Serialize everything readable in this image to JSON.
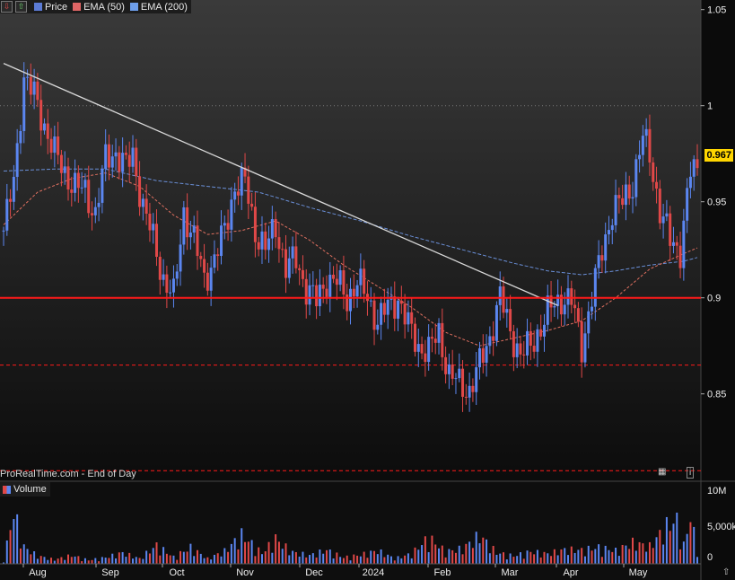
{
  "legend": {
    "items": [
      {
        "label": "Price",
        "color": "#5b7bd5"
      },
      {
        "label": "EMA (50)",
        "color": "#e06666"
      },
      {
        "label": "EMA (200)",
        "color": "#6d9eeb"
      }
    ]
  },
  "footer": "ProRealTime.com - End of Day",
  "volume_label": "Volume",
  "last_price_tag": "0.967",
  "colors": {
    "up": "#5b86f0",
    "down": "#e04848",
    "ema50": "#e07060",
    "ema200": "#6a8fd8",
    "support": "#ff1a1a"
  },
  "chart_data": [
    {
      "type": "candlestick",
      "ylim": [
        0.805,
        1.055
      ],
      "yticks": [
        0.85,
        0.9,
        0.95,
        1,
        1.05
      ],
      "ytick_labels": [
        "0.85",
        "0.9",
        "0.95",
        "1",
        "1.05"
      ],
      "xtick_labels": [
        "Aug",
        "Sep",
        "Oct",
        "Nov",
        "Dec",
        "2024",
        "Feb",
        "Mar",
        "Apr",
        "May"
      ],
      "close_path": [
        [
          0,
          0.935
        ],
        [
          3,
          0.96
        ],
        [
          6,
          1.015
        ],
        [
          9,
          1.005
        ],
        [
          12,
          0.99
        ],
        [
          15,
          0.975
        ],
        [
          18,
          0.965
        ],
        [
          21,
          0.958
        ],
        [
          24,
          0.955
        ],
        [
          27,
          0.944
        ],
        [
          30,
          0.972
        ],
        [
          33,
          0.976
        ],
        [
          36,
          0.968
        ],
        [
          38,
          0.974
        ],
        [
          41,
          0.948
        ],
        [
          44,
          0.93
        ],
        [
          47,
          0.91
        ],
        [
          50,
          0.9
        ],
        [
          53,
          0.945
        ],
        [
          56,
          0.93
        ],
        [
          59,
          0.91
        ],
        [
          62,
          0.92
        ],
        [
          65,
          0.935
        ],
        [
          68,
          0.958
        ],
        [
          71,
          0.96
        ],
        [
          74,
          0.935
        ],
        [
          77,
          0.925
        ],
        [
          80,
          0.938
        ],
        [
          83,
          0.915
        ],
        [
          86,
          0.92
        ],
        [
          89,
          0.905
        ],
        [
          92,
          0.898
        ],
        [
          95,
          0.91
        ],
        [
          98,
          0.908
        ],
        [
          101,
          0.9
        ],
        [
          104,
          0.908
        ],
        [
          107,
          0.9
        ],
        [
          110,
          0.888
        ],
        [
          113,
          0.895
        ],
        [
          116,
          0.9
        ],
        [
          119,
          0.885
        ],
        [
          122,
          0.875
        ],
        [
          125,
          0.872
        ],
        [
          128,
          0.882
        ],
        [
          131,
          0.86
        ],
        [
          134,
          0.855
        ],
        [
          137,
          0.852
        ],
        [
          140,
          0.865
        ],
        [
          143,
          0.88
        ],
        [
          146,
          0.9
        ],
        [
          149,
          0.883
        ],
        [
          152,
          0.87
        ],
        [
          155,
          0.875
        ],
        [
          158,
          0.885
        ],
        [
          161,
          0.895
        ],
        [
          164,
          0.9
        ],
        [
          167,
          0.898
        ],
        [
          170,
          0.875
        ],
        [
          173,
          0.9
        ],
        [
          176,
          0.925
        ],
        [
          179,
          0.945
        ],
        [
          182,
          0.95
        ],
        [
          185,
          0.96
        ],
        [
          188,
          0.983
        ],
        [
          190,
          0.975
        ],
        [
          193,
          0.945
        ],
        [
          196,
          0.93
        ],
        [
          199,
          0.925
        ],
        [
          202,
          0.965
        ],
        [
          204,
          0.967
        ]
      ],
      "n_candles": 205,
      "ema50": [
        [
          0,
          0.938
        ],
        [
          10,
          0.955
        ],
        [
          20,
          0.962
        ],
        [
          30,
          0.965
        ],
        [
          40,
          0.958
        ],
        [
          50,
          0.943
        ],
        [
          60,
          0.933
        ],
        [
          70,
          0.935
        ],
        [
          80,
          0.94
        ],
        [
          90,
          0.93
        ],
        [
          100,
          0.917
        ],
        [
          110,
          0.906
        ],
        [
          120,
          0.895
        ],
        [
          130,
          0.882
        ],
        [
          140,
          0.875
        ],
        [
          150,
          0.879
        ],
        [
          160,
          0.883
        ],
        [
          170,
          0.888
        ],
        [
          180,
          0.9
        ],
        [
          190,
          0.915
        ],
        [
          200,
          0.923
        ],
        [
          204,
          0.926
        ]
      ],
      "ema200": [
        [
          0,
          0.966
        ],
        [
          15,
          0.967
        ],
        [
          30,
          0.967
        ],
        [
          45,
          0.961
        ],
        [
          60,
          0.958
        ],
        [
          75,
          0.955
        ],
        [
          90,
          0.947
        ],
        [
          105,
          0.94
        ],
        [
          120,
          0.932
        ],
        [
          135,
          0.925
        ],
        [
          150,
          0.918
        ],
        [
          160,
          0.914
        ],
        [
          170,
          0.912
        ],
        [
          180,
          0.914
        ],
        [
          190,
          0.917
        ],
        [
          200,
          0.919
        ],
        [
          204,
          0.921
        ]
      ],
      "support_line": 0.9,
      "dashed_levels": [
        0.865,
        0.81
      ],
      "grid_levels": [
        1
      ],
      "trendline": [
        [
          0,
          1.022
        ],
        [
          163,
          0.896
        ]
      ]
    },
    {
      "type": "bar",
      "ylim": [
        0,
        10000000
      ],
      "ytick_labels": [
        "10M",
        "5,000k",
        "0"
      ],
      "volume": [
        [
          0,
          600000.0
        ],
        [
          3,
          9900000.0
        ],
        [
          6,
          3200000.0
        ],
        [
          10,
          1500000.0
        ],
        [
          15,
          800000.0
        ],
        [
          20,
          1600000.0
        ],
        [
          25,
          700000.0
        ],
        [
          30,
          1200000.0
        ],
        [
          35,
          2100000.0
        ],
        [
          40,
          1000000.0
        ],
        [
          45,
          3500000.0
        ],
        [
          50,
          1300000.0
        ],
        [
          55,
          3100000.0
        ],
        [
          60,
          1000000.0
        ],
        [
          65,
          2400000.0
        ],
        [
          70,
          5500000.0
        ],
        [
          73,
          3800000.0
        ],
        [
          76,
          2000000.0
        ],
        [
          80,
          4800000.0
        ],
        [
          82,
          3600000.0
        ],
        [
          85,
          2200000.0
        ],
        [
          90,
          1600000.0
        ],
        [
          95,
          2600000.0
        ],
        [
          100,
          1200000.0
        ],
        [
          105,
          1700000.0
        ],
        [
          110,
          2500000.0
        ],
        [
          115,
          1000000.0
        ],
        [
          120,
          1900000.0
        ],
        [
          125,
          5000000.0
        ],
        [
          130,
          2300000.0
        ],
        [
          135,
          2900000.0
        ],
        [
          140,
          5400000.0
        ],
        [
          145,
          2100000.0
        ],
        [
          150,
          1500000.0
        ],
        [
          155,
          2300000.0
        ],
        [
          160,
          1900000.0
        ],
        [
          165,
          2700000.0
        ],
        [
          170,
          2600000.0
        ],
        [
          175,
          3100000.0
        ],
        [
          180,
          2500000.0
        ],
        [
          185,
          4000000.0
        ],
        [
          190,
          3300000.0
        ],
        [
          195,
          7200000.0
        ],
        [
          198,
          8200000.0
        ],
        [
          200,
          3500000.0
        ],
        [
          202,
          8900000.0
        ],
        [
          204,
          2600000.0
        ]
      ]
    }
  ]
}
